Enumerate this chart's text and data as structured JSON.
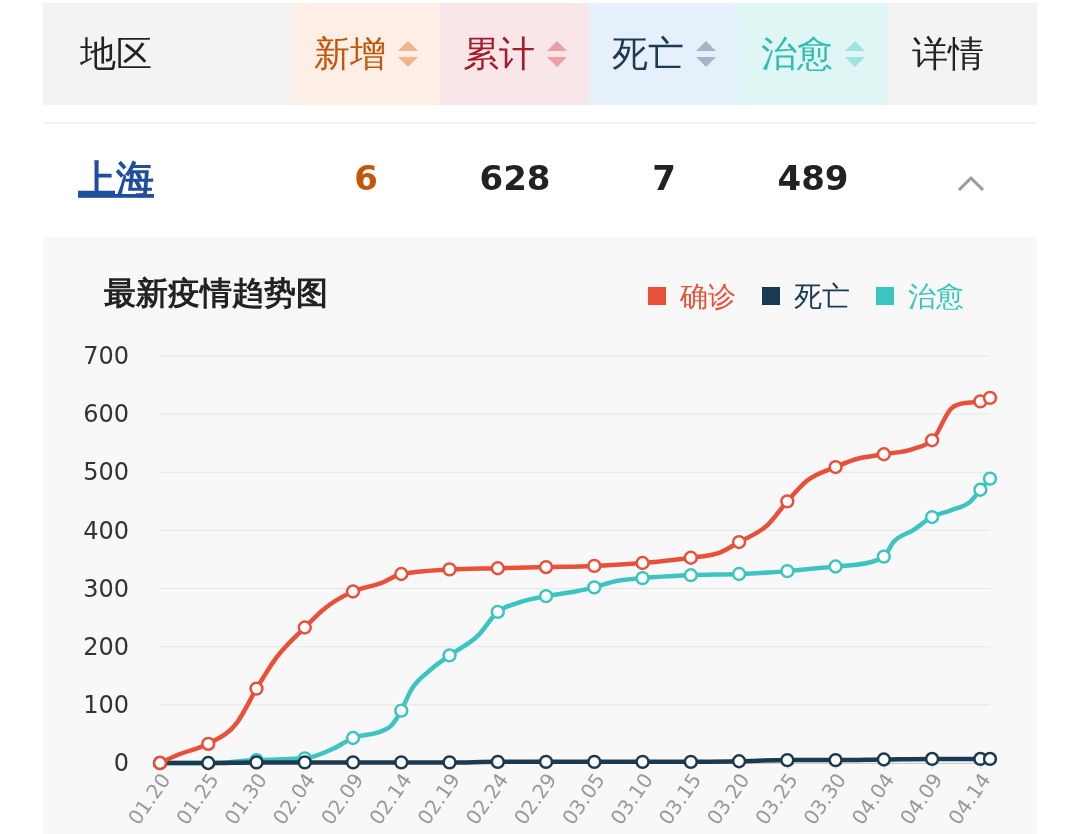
{
  "chart_data": [
    {
      "type": "other",
      "annotations": [
        "地区",
        "新增",
        "累计",
        "死亡",
        "治愈",
        "详情",
        "上海",
        "6",
        "628",
        "7",
        "489"
      ]
    },
    {
      "type": "line",
      "title": "最新疫情趋势图",
      "legend": "top right",
      "grid": "y",
      "marker": "circle",
      "line_style": "solid",
      "xlim": [
        "--01-20",
        "--04-15"
      ],
      "xticks": [
        {
          "value": "--01-20",
          "label": "01.20"
        },
        {
          "value": "--01-25",
          "label": "01.25"
        },
        {
          "value": "--01-30",
          "label": "01.30"
        },
        {
          "value": "--02-04",
          "label": "02.04"
        },
        {
          "value": "--02-09",
          "label": "02.09"
        },
        {
          "value": "--02-14",
          "label": "02.14"
        },
        {
          "value": "--02-19",
          "label": "02.19"
        },
        {
          "value": "--02-24",
          "label": "02.24"
        },
        {
          "value": "--02-29",
          "label": "02.29"
        },
        {
          "value": "--03-05",
          "label": "03.05"
        },
        {
          "value": "--03-10",
          "label": "03.10"
        },
        {
          "value": "--03-15",
          "label": "03.15"
        },
        {
          "value": "--03-20",
          "label": "03.20"
        },
        {
          "value": "--03-25",
          "label": "03.25"
        },
        {
          "value": "--03-30",
          "label": "03.30"
        },
        {
          "value": "--04-04",
          "label": "04.04"
        },
        {
          "value": "--04-09",
          "label": "04.09"
        },
        {
          "value": "--04-14",
          "label": "04.14"
        }
      ],
      "ylim": [
        0,
        700
      ],
      "yticks": [
        0,
        100,
        200,
        300,
        400,
        500,
        600,
        700
      ],
      "series": [
        {
          "name": "确诊",
          "color": "#e8503a",
          "x": [
            "--01-20",
            "--01-22",
            "--01-25",
            "--01-28",
            "--01-30",
            "--02-01",
            "--02-04",
            "--02-06",
            "--02-09",
            "--02-12",
            "--02-14",
            "--02-19",
            "--02-24",
            "--02-29",
            "--03-05",
            "--03-10",
            "--03-15",
            "--03-18",
            "--03-20",
            "--03-23",
            "--03-25",
            "--03-27",
            "--03-30",
            "--04-01",
            "--04-04",
            "--04-07",
            "--04-09",
            "--04-11",
            "--04-12",
            "--04-14",
            "--04-15"
          ],
          "values": [
            0,
            15,
            33,
            70,
            128,
            180,
            233,
            265,
            295,
            310,
            325,
            333,
            335,
            337,
            339,
            344,
            353,
            362,
            380,
            410,
            450,
            485,
            509,
            522,
            531,
            540,
            555,
            610,
            618,
            622,
            628
          ]
        },
        {
          "name": "死亡",
          "color": "#1b3a52",
          "x": [
            "--01-20",
            "--01-25",
            "--01-30",
            "--02-04",
            "--02-09",
            "--02-14",
            "--02-19",
            "--02-24",
            "--02-29",
            "--03-05",
            "--03-10",
            "--03-15",
            "--03-20",
            "--03-25",
            "--03-30",
            "--04-04",
            "--04-09",
            "--04-14",
            "--04-15"
          ],
          "values": [
            0,
            0,
            1,
            1,
            1,
            1,
            1,
            2,
            2,
            2,
            2,
            2,
            3,
            5,
            5,
            6,
            7,
            7,
            7
          ]
        },
        {
          "name": "治愈",
          "color": "#3cc5c0",
          "x": [
            "--01-20",
            "--01-25",
            "--01-30",
            "--02-04",
            "--02-07",
            "--02-09",
            "--02-12",
            "--02-13",
            "--02-14",
            "--02-15",
            "--02-17",
            "--02-19",
            "--02-22",
            "--02-24",
            "--02-26",
            "--02-29",
            "--03-03",
            "--03-05",
            "--03-07",
            "--03-10",
            "--03-15",
            "--03-20",
            "--03-25",
            "--03-30",
            "--04-02",
            "--04-04",
            "--04-05",
            "--04-07",
            "--04-09",
            "--04-11",
            "--04-13",
            "--04-14",
            "--04-15"
          ],
          "values": [
            0,
            0,
            5,
            8,
            25,
            43,
            55,
            65,
            90,
            125,
            160,
            185,
            220,
            260,
            275,
            287,
            295,
            302,
            312,
            318,
            323,
            325,
            330,
            338,
            343,
            355,
            380,
            400,
            423,
            435,
            450,
            470,
            489
          ]
        }
      ]
    }
  ]
}
